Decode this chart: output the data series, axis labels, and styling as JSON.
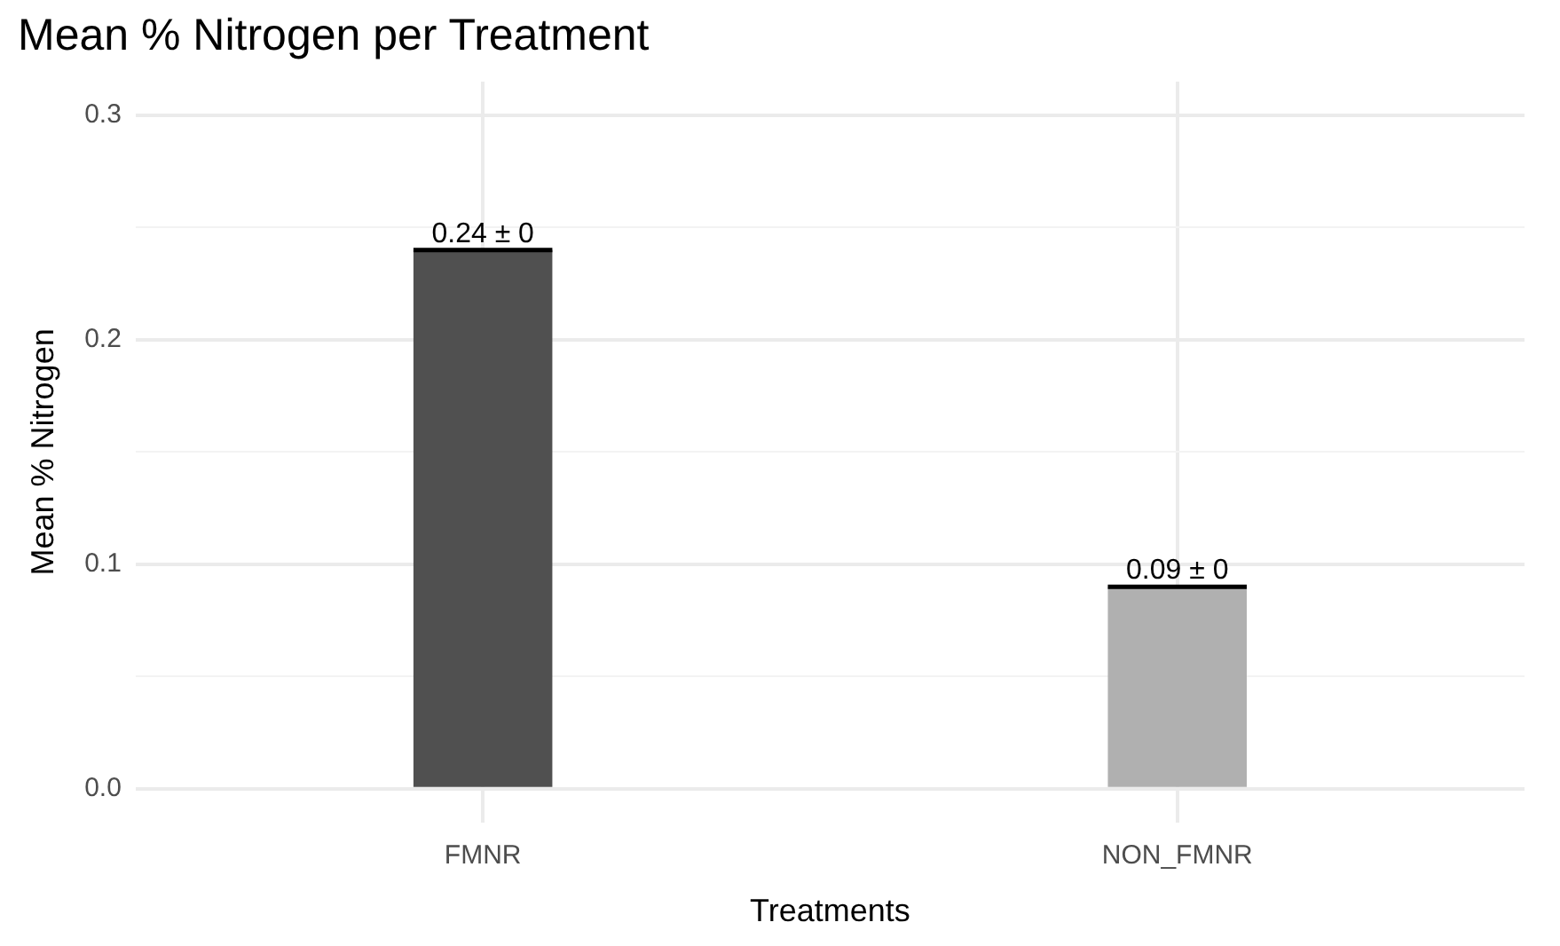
{
  "chart_data": {
    "type": "bar",
    "title": "Mean % Nitrogen per Treatment",
    "xlabel": "Treatments",
    "ylabel": "Mean % Nitrogen",
    "categories": [
      "FMNR",
      "NON_FMNR"
    ],
    "values": [
      0.24,
      0.09
    ],
    "colors": [
      "#505050",
      "#b0b0b0"
    ],
    "errors": [
      0,
      0
    ],
    "value_labels": [
      "0.24 ± 0",
      "0.09 ± 0"
    ],
    "ylim": [
      -0.015,
      0.315
    ],
    "yticks": [
      {
        "value": 0,
        "label": "0.0"
      },
      {
        "value": 0.05,
        "label": null
      },
      {
        "value": 0.1,
        "label": "0.1"
      },
      {
        "value": 0.15,
        "label": null
      },
      {
        "value": 0.2,
        "label": "0.2"
      },
      {
        "value": 0.25,
        "label": null
      },
      {
        "value": 0.3,
        "label": "0.3"
      }
    ],
    "grid": true,
    "legend": false
  }
}
